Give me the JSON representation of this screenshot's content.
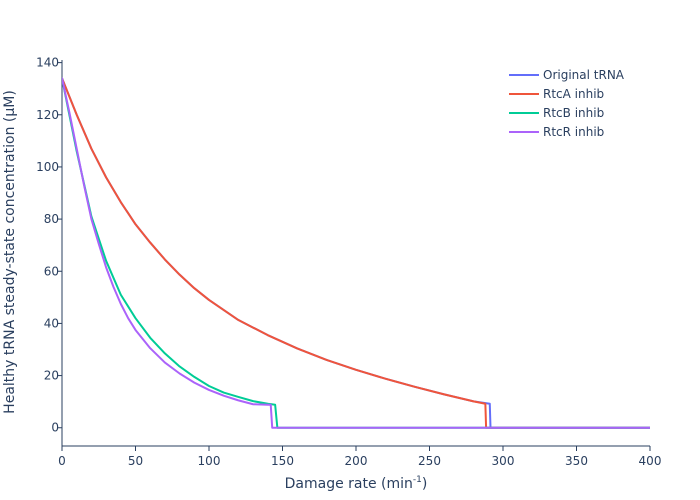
{
  "chart_data": {
    "type": "line",
    "title": "",
    "xlabel": "Damage rate (min",
    "xlabel_sup": "-1",
    "xlabel_close": ")",
    "ylabel": "Healthy tRNA steady-state concentration (μM)",
    "xlim": [
      0,
      400
    ],
    "ylim": [
      -7,
      141
    ],
    "xticks": [
      0,
      50,
      100,
      150,
      200,
      250,
      300,
      350,
      400
    ],
    "yticks": [
      0,
      20,
      40,
      60,
      80,
      100,
      120,
      140
    ],
    "grid": false,
    "legend_position": "top-right",
    "series": [
      {
        "name": "Original tRNA",
        "color": "#636efa",
        "x": [
          0,
          10,
          20,
          30,
          40,
          50,
          60,
          70,
          80,
          90,
          100,
          120,
          140,
          160,
          180,
          200,
          220,
          240,
          260,
          280,
          291,
          291.5,
          292,
          300,
          400
        ],
        "y": [
          134,
          120,
          107,
          96,
          86.5,
          78,
          71,
          64.5,
          58.7,
          53.5,
          49,
          41.3,
          35.5,
          30.4,
          26,
          22.2,
          18.8,
          15.7,
          12.8,
          10.1,
          9.2,
          0,
          0,
          0,
          0
        ]
      },
      {
        "name": "RtcA inhib",
        "color": "#ef553b",
        "x": [
          0,
          10,
          20,
          30,
          40,
          50,
          60,
          70,
          80,
          90,
          100,
          120,
          140,
          160,
          180,
          200,
          220,
          240,
          260,
          280,
          288,
          288.5,
          300,
          400
        ],
        "y": [
          134,
          120,
          107,
          96,
          86.5,
          78,
          71,
          64.5,
          58.7,
          53.5,
          49,
          41.3,
          35.5,
          30.4,
          26,
          22.2,
          18.8,
          15.7,
          12.8,
          10.1,
          9.2,
          0,
          0,
          0
        ]
      },
      {
        "name": "RtcB inhib",
        "color": "#00cc96",
        "x": [
          0,
          10,
          20,
          30,
          40,
          50,
          60,
          70,
          80,
          90,
          100,
          110,
          120,
          130,
          140,
          145,
          146.5,
          150,
          200,
          300,
          400
        ],
        "y": [
          134,
          106,
          81,
          64,
          51,
          42,
          34.5,
          28.5,
          23.5,
          19.5,
          16,
          13.5,
          11.8,
          10.2,
          9.2,
          8.8,
          0,
          0,
          0,
          0,
          0
        ]
      },
      {
        "name": "RtcR inhib",
        "color": "#ab63fa",
        "x": [
          0,
          5,
          10,
          15,
          20,
          25,
          30,
          35,
          40,
          45,
          50,
          60,
          70,
          80,
          90,
          100,
          110,
          120,
          130,
          140,
          142,
          143,
          150,
          200,
          300,
          400
        ],
        "y": [
          134,
          121,
          107,
          93,
          80,
          70.5,
          61.5,
          54,
          47.5,
          42,
          37.5,
          30.5,
          25,
          20.8,
          17.3,
          14.5,
          12.3,
          10.5,
          9,
          8.8,
          8.8,
          0,
          0,
          0,
          0,
          0
        ]
      }
    ]
  }
}
